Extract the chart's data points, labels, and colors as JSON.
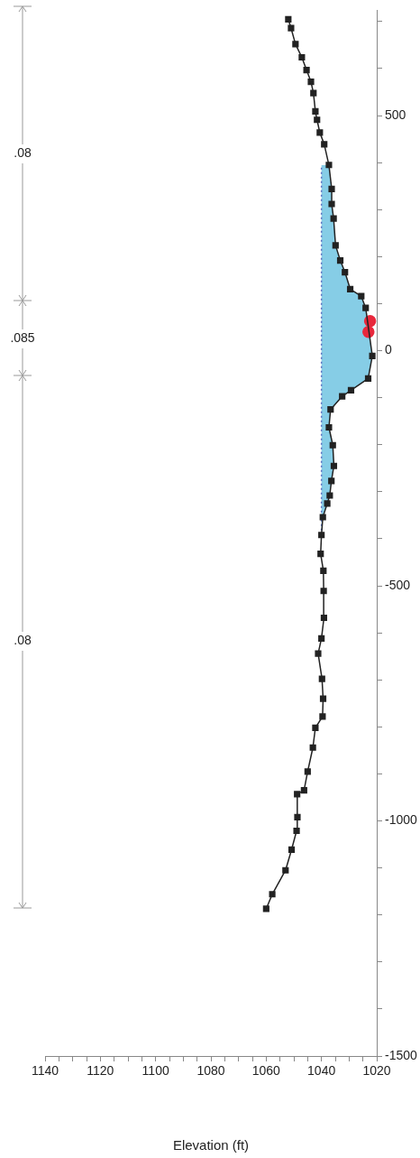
{
  "chart_data": {
    "type": "line",
    "orientation": "horizontal",
    "xlabel": "Elevation (ft)",
    "ylim": [
      -1500,
      724
    ],
    "xlim": [
      1140,
      1020
    ],
    "yticks": [
      -1500,
      {
        "value": -1400,
        "label": null
      },
      {
        "value": -1300,
        "label": null
      },
      {
        "value": -1200,
        "label": null
      },
      {
        "value": -1100,
        "label": null
      },
      -1000,
      {
        "value": -900,
        "label": null
      },
      {
        "value": -800,
        "label": null
      },
      {
        "value": -700,
        "label": null
      },
      {
        "value": -600,
        "label": null
      },
      -500,
      {
        "value": -400,
        "label": null
      },
      {
        "value": -300,
        "label": null
      },
      {
        "value": -200,
        "label": null
      },
      {
        "value": -100,
        "label": null
      },
      0,
      {
        "value": 100,
        "label": null
      },
      {
        "value": 200,
        "label": null
      },
      {
        "value": 300,
        "label": null
      },
      {
        "value": 400,
        "label": null
      },
      500,
      {
        "value": 600,
        "label": null
      },
      {
        "value": 700,
        "label": null
      }
    ],
    "xticks": [
      1140,
      {
        "value": 1135,
        "label": null
      },
      {
        "value": 1130,
        "label": null
      },
      {
        "value": 1125,
        "label": null
      },
      1120,
      {
        "value": 1115,
        "label": null
      },
      {
        "value": 1110,
        "label": null
      },
      {
        "value": 1105,
        "label": null
      },
      1100,
      {
        "value": 1095,
        "label": null
      },
      {
        "value": 1090,
        "label": null
      },
      {
        "value": 1085,
        "label": null
      },
      1080,
      {
        "value": 1075,
        "label": null
      },
      {
        "value": 1070,
        "label": null
      },
      {
        "value": 1065,
        "label": null
      },
      1060,
      {
        "value": 1055,
        "label": null
      },
      {
        "value": 1050,
        "label": null
      },
      {
        "value": 1045,
        "label": null
      },
      1040,
      {
        "value": 1035,
        "label": null
      },
      {
        "value": 1030,
        "label": null
      },
      {
        "value": 1025,
        "label": null
      },
      1020
    ],
    "grid": false,
    "legend": false,
    "marker": "square",
    "series": [
      {
        "color": "#222222",
        "x": [
          -1187,
          -1156,
          -1105,
          -1061,
          -1021,
          -992,
          -943,
          -935,
          -895,
          -844,
          -802,
          -778,
          -740,
          -698,
          -644,
          -612,
          -568,
          -511,
          -468,
          -432,
          -392,
          -354,
          -325,
          -308,
          -277,
          -245,
          -201,
          -163,
          -125,
          -97,
          -84,
          -59,
          -11,
          91,
          116,
          131,
          167,
          192,
          224,
          281,
          312,
          344,
          395,
          439,
          464,
          491,
          509,
          548,
          572,
          597,
          624,
          652,
          686,
          705
        ],
        "values": [
          1060,
          1057.8,
          1053,
          1050.8,
          1049,
          1048.7,
          1048.8,
          1046.3,
          1045,
          1043.1,
          1042.2,
          1039.6,
          1039.4,
          1039.8,
          1041.2,
          1040,
          1039.1,
          1039.2,
          1039.3,
          1040.3,
          1040,
          1039.5,
          1037.9,
          1037,
          1036.4,
          1035.5,
          1035.9,
          1037.3,
          1036.7,
          1032.5,
          1029.3,
          1023.1,
          1021.6,
          1024,
          1025.6,
          1029.6,
          1031.5,
          1033.2,
          1034.9,
          1035.6,
          1036.3,
          1036.3,
          1037.3,
          1039,
          1040.6,
          1041.6,
          1042.2,
          1042.9,
          1043.8,
          1045.4,
          1047.1,
          1049.4,
          1051,
          1052
        ]
      },
      {
        "type": "line",
        "color": "#5a6fc0",
        "line_style": "dotted",
        "marker": "none",
        "x": [
          -392,
          -354,
          -325,
          -308,
          -277,
          -245,
          -201,
          -163,
          -125,
          -97,
          -84,
          -59,
          -11,
          91,
          116,
          131,
          167,
          192,
          224,
          281,
          312,
          344,
          395
        ],
        "values": [
          1040,
          1040,
          1040,
          1040,
          1040,
          1040,
          1040,
          1040,
          1040,
          1040,
          1040,
          1040,
          1040,
          1040,
          1040,
          1040,
          1040,
          1040,
          1040,
          1040,
          1040,
          1040,
          1040
        ],
        "lower": [
          1040,
          1039.5,
          1037.9,
          1037,
          1036.4,
          1035.5,
          1035.9,
          1037.3,
          1036.7,
          1032.5,
          1029.3,
          1023.1,
          1021.6,
          1024,
          1025.6,
          1029.6,
          1031.5,
          1033.2,
          1034.9,
          1035.6,
          1036.3,
          1036.3,
          1037.3
        ],
        "upper": [
          1040,
          1040,
          1040,
          1040,
          1040,
          1040,
          1040,
          1040,
          1040,
          1040,
          1040,
          1040,
          1040,
          1040,
          1040,
          1040,
          1040,
          1040,
          1040,
          1040,
          1040,
          1040,
          1040
        ]
      },
      {
        "type": "scatter",
        "color": "#e8283c",
        "marker": "circle",
        "x": [
          40,
          63
        ],
        "values": [
          1023,
          1022.4
        ]
      }
    ],
    "annotations": [
      ".08",
      ".085",
      ".08"
    ]
  }
}
